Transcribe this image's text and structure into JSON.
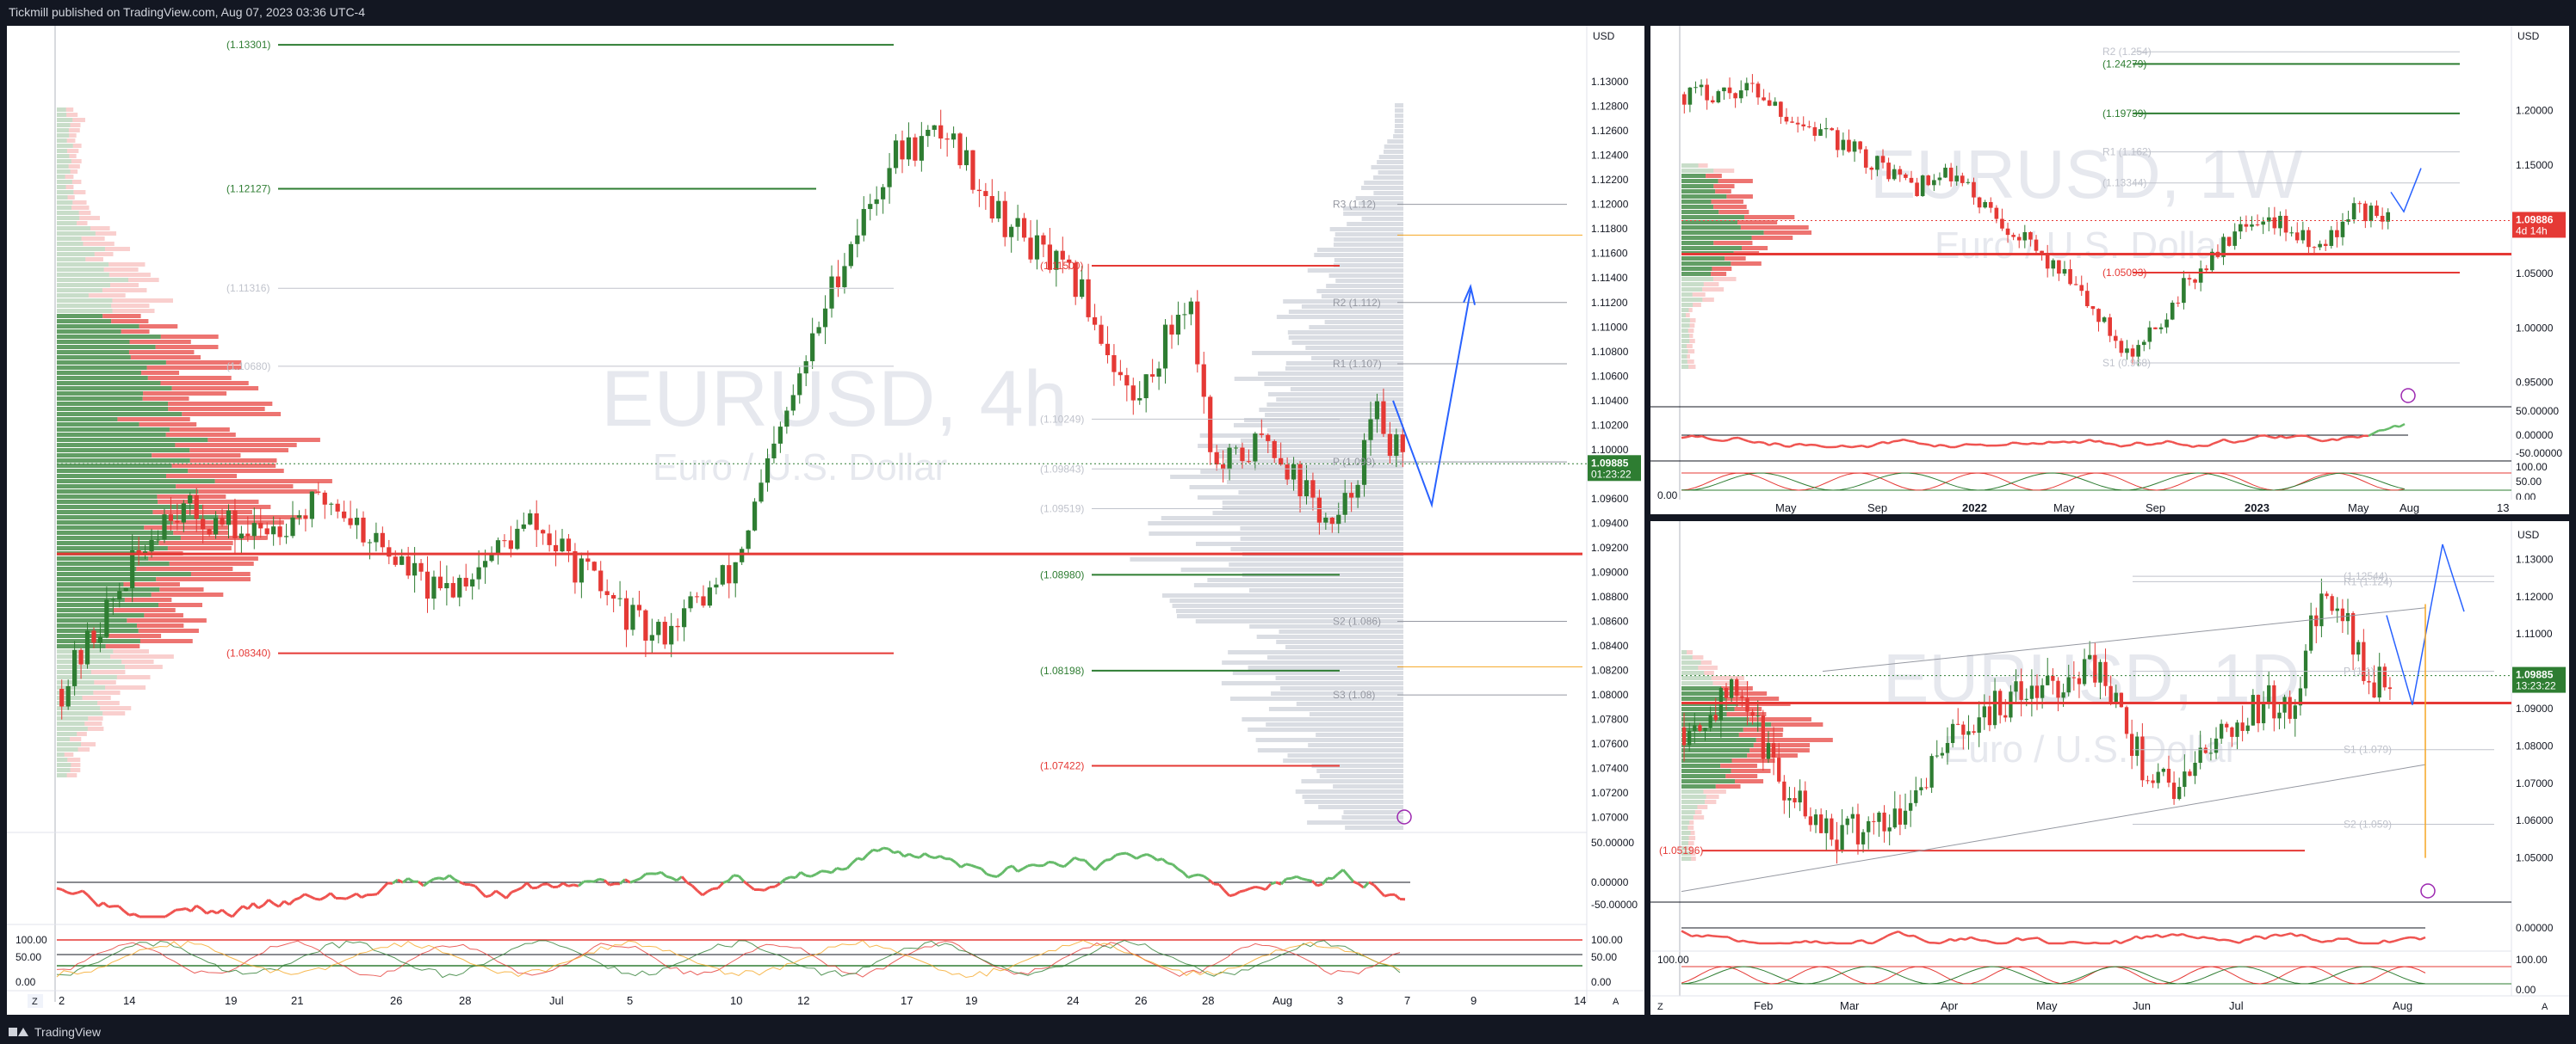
{
  "header": {
    "published": "Tickmill published on TradingView.com, Aug 07, 2023 03:36 UTC-4"
  },
  "footer": {
    "brand": "TradingView"
  },
  "colors": {
    "up": "#089981",
    "candle_up": "#2e7d32",
    "down": "#e53935",
    "blue": "#2962ff",
    "price_tag": "#2e7d32",
    "weekly_tag": "#e53935"
  },
  "panels": {
    "h4": {
      "symbol_wm": "EURUSD, 4h",
      "desc_wm": "Euro / U.S. Dollar",
      "currency": "USD",
      "price_label": "1.09885",
      "countdown": "01:23:22",
      "y_ticks": [
        "1.13000",
        "1.12800",
        "1.12600",
        "1.12400",
        "1.12200",
        "1.12000",
        "1.11800",
        "1.11600",
        "1.11400",
        "1.11200",
        "1.11000",
        "1.10800",
        "1.10600",
        "1.10400",
        "1.10200",
        "1.10000",
        "1.09800",
        "1.09600",
        "1.09400",
        "1.09200",
        "1.09000",
        "1.08800",
        "1.08600",
        "1.08400",
        "1.08200",
        "1.08000",
        "1.07800",
        "1.07600",
        "1.07400",
        "1.07200",
        "1.07000"
      ],
      "x_ticks": [
        "2",
        "14",
        "19",
        "21",
        "26",
        "28",
        "Jul",
        "5",
        "10",
        "12",
        "17",
        "19",
        "24",
        "26",
        "28",
        "Aug",
        "3",
        "7",
        "9",
        "14"
      ],
      "levels": [
        {
          "label": "(1.13301)",
          "price": 1.13301,
          "color": "#2e7d32"
        },
        {
          "label": "(1.12127)",
          "price": 1.12127,
          "color": "#2e7d32"
        },
        {
          "label": "(1.11316)",
          "price": 1.11316,
          "color": "#c0c3cc"
        },
        {
          "label": "(1.10680)",
          "price": 1.1068,
          "color": "#c0c3cc"
        },
        {
          "label": "(1.11500)",
          "price": 1.115,
          "color": "#e53935"
        },
        {
          "label": "(1.08980)",
          "price": 1.0898,
          "color": "#2e7d32"
        },
        {
          "label": "(1.08340)",
          "price": 1.0834,
          "color": "#e53935"
        },
        {
          "label": "(1.08198)",
          "price": 1.08198,
          "color": "#2e7d32"
        },
        {
          "label": "(1.07422)",
          "price": 1.07422,
          "color": "#e53935"
        },
        {
          "label": "(1.09843)",
          "price": 1.09843,
          "color": "#c0c3cc"
        },
        {
          "label": "(1.09519)",
          "price": 1.09519,
          "color": "#c0c3cc"
        },
        {
          "label": "(1.10249)",
          "price": 1.10249,
          "color": "#c0c3cc"
        }
      ],
      "pivots": [
        {
          "label": "R3 (1.12)",
          "price": 1.12
        },
        {
          "label": "R2 (1.112)",
          "price": 1.112
        },
        {
          "label": "R1 (1.107)",
          "price": 1.107
        },
        {
          "label": "P (1.099)",
          "price": 1.099
        },
        {
          "label": "S2 (1.086)",
          "price": 1.086
        },
        {
          "label": "S3 (1.08)",
          "price": 1.08
        }
      ],
      "osc1_ticks": [
        "50.00000",
        "0.00000",
        "-50.00000"
      ],
      "osc2_ticks": [
        "100.00",
        "50.00",
        "0.00"
      ]
    },
    "weekly": {
      "symbol_wm": "EURUSD, 1W",
      "desc_wm": "Euro / U.S. Dollar",
      "currency": "USD",
      "price_label": "1.09886",
      "countdown": "4d 14h",
      "y_ticks": [
        "1.20000",
        "1.15000",
        "1.10000",
        "1.05000",
        "1.00000",
        "0.95000"
      ],
      "x_ticks": [
        "May",
        "Sep",
        "2022",
        "May",
        "Sep",
        "2023",
        "May",
        "Aug",
        "13"
      ],
      "levels": [
        {
          "label": "R2 (1.254)",
          "price": 1.254,
          "color": "#c0c3cc"
        },
        {
          "label": "(1.24279)",
          "price": 1.24279,
          "color": "#2e7d32"
        },
        {
          "label": "(1.19739)",
          "price": 1.19739,
          "color": "#2e7d32"
        },
        {
          "label": "R1 (1.162)",
          "price": 1.162,
          "color": "#c0c3cc"
        },
        {
          "label": "(1.13344)",
          "price": 1.13344,
          "color": "#c0c3cc"
        },
        {
          "label": "(1.05093)",
          "price": 1.05093,
          "color": "#e53935"
        },
        {
          "label": "S1 (0.968)",
          "price": 0.968,
          "color": "#c0c3cc"
        }
      ],
      "osc1_ticks": [
        "50.00000",
        "0.00000",
        "-50.00000"
      ],
      "osc2_ticks": [
        "100.00",
        "50.00",
        "0.00"
      ],
      "left_tick": "0.00"
    },
    "daily": {
      "symbol_wm": "EURUSD, 1D",
      "desc_wm": "Euro / U.S. Dollar",
      "currency": "USD",
      "price_label": "1.09885",
      "countdown": "13:23:22",
      "y_ticks": [
        "1.13000",
        "1.12000",
        "1.11000",
        "1.10000",
        "1.09000",
        "1.08000",
        "1.07000",
        "1.06000",
        "1.05000"
      ],
      "x_ticks": [
        "Feb",
        "Mar",
        "Apr",
        "May",
        "Jun",
        "Jul",
        "Aug"
      ],
      "levels": [
        {
          "label": "P (1.1)",
          "price": 1.1,
          "color": "#c0c3cc"
        },
        {
          "label": "R1 (1.124)",
          "price": 1.124,
          "color": "#c0c3cc"
        },
        {
          "label": "(1.12544)",
          "price": 1.12544,
          "color": "#c0c3cc"
        },
        {
          "label": "S1 (1.079)",
          "price": 1.079,
          "color": "#c0c3cc"
        },
        {
          "label": "S2 (1.059)",
          "price": 1.059,
          "color": "#c0c3cc"
        },
        {
          "label": "(1.05196)",
          "price": 1.05196,
          "color": "#e53935"
        }
      ],
      "osc1_ticks": [
        "0.00000"
      ],
      "osc2_ticks": [
        "100.00",
        "0.00"
      ],
      "left_tick": "100.00"
    }
  },
  "chart_data": [
    {
      "type": "candlestick",
      "timeframe": "4h",
      "symbol": "EURUSD",
      "title": "EURUSD, 4h",
      "ylim": [
        1.069,
        1.134
      ],
      "key_levels": [
        1.13301,
        1.12127,
        1.115,
        1.0898,
        1.0834,
        1.08198,
        1.07422
      ],
      "last_price": 1.09885
    },
    {
      "type": "candlestick",
      "timeframe": "1W",
      "symbol": "EURUSD",
      "title": "EURUSD, 1W",
      "ylim": [
        0.93,
        1.27
      ],
      "key_levels": [
        1.254,
        1.24279,
        1.19739,
        1.162,
        1.05093,
        0.968
      ],
      "last_price": 1.09886
    },
    {
      "type": "candlestick",
      "timeframe": "1D",
      "symbol": "EURUSD",
      "title": "EURUSD, 1D",
      "ylim": [
        1.04,
        1.137
      ],
      "key_levels": [
        1.124,
        1.1,
        1.079,
        1.059,
        1.05196
      ],
      "last_price": 1.09885
    }
  ]
}
